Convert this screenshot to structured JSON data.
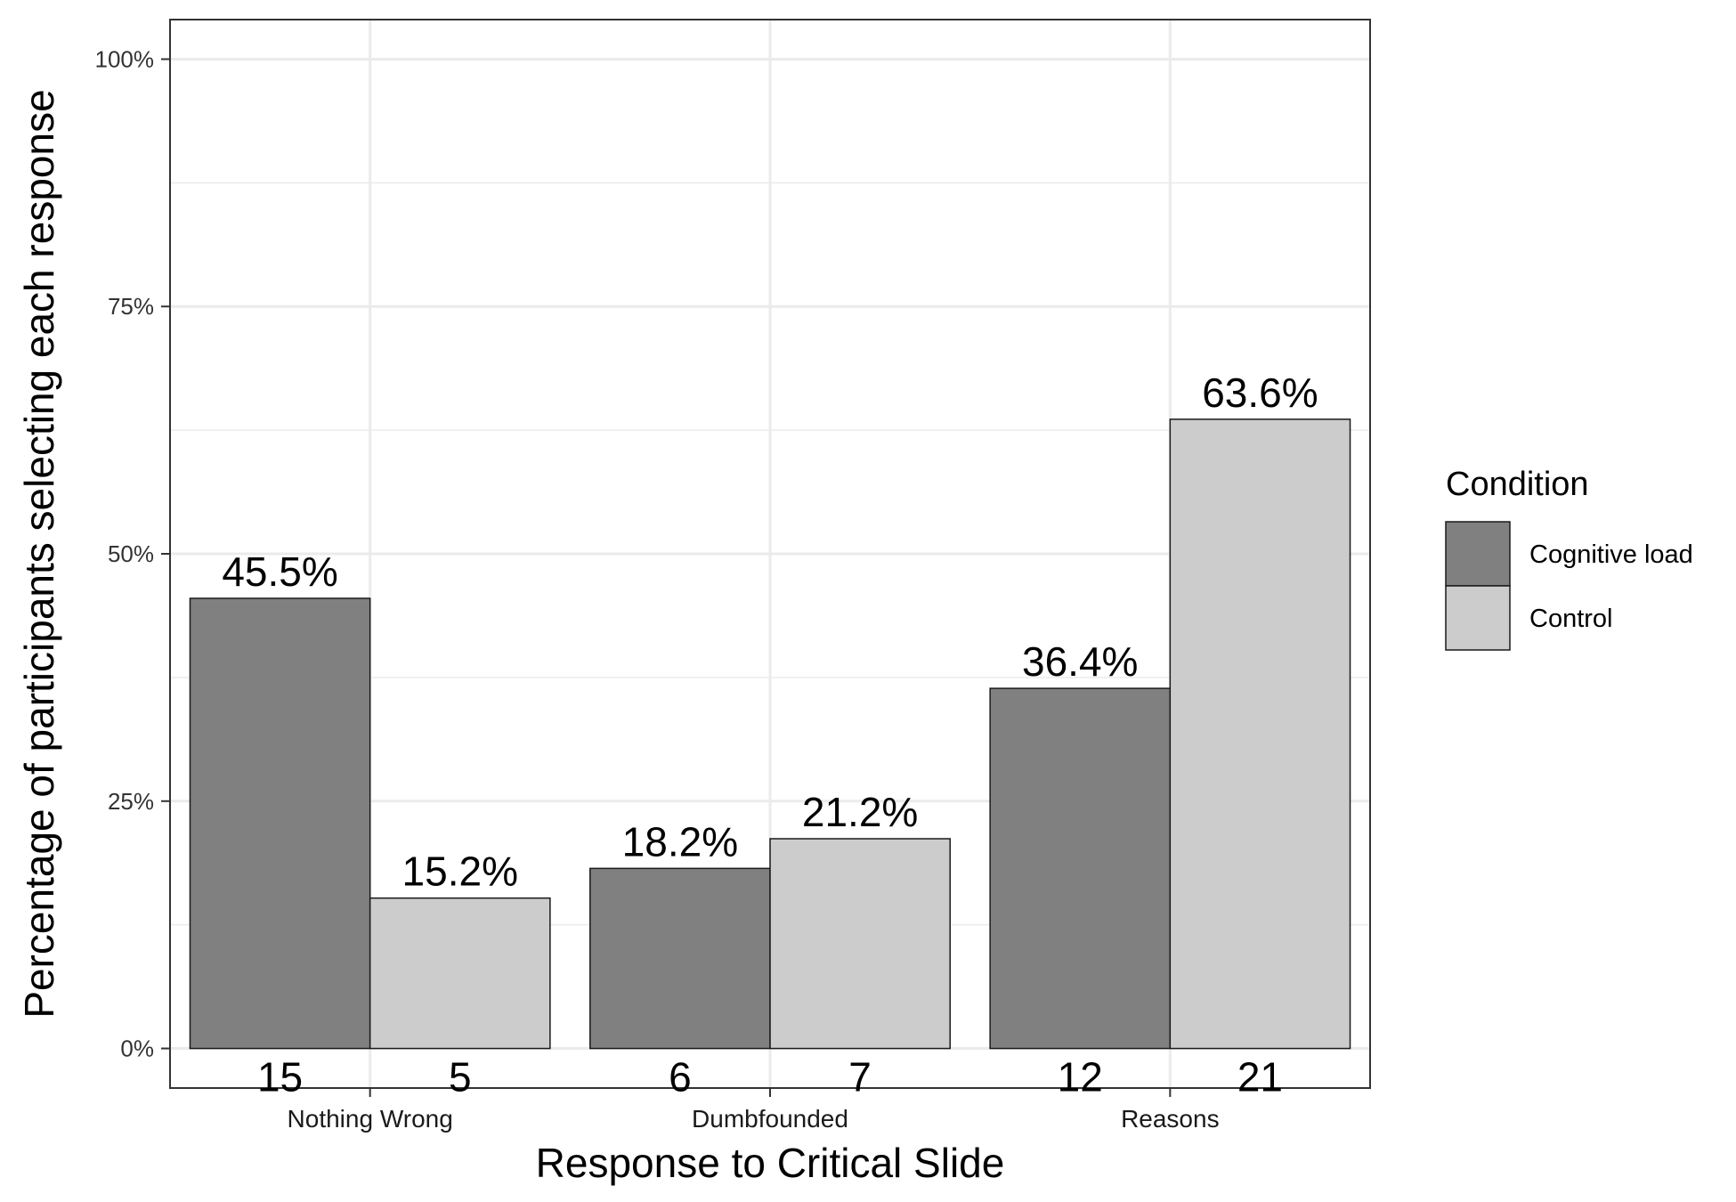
{
  "chart_data": {
    "type": "bar",
    "xlabel": "Response to Critical Slide",
    "ylabel": "Percentage of participants selecting each response",
    "categories": [
      "Nothing Wrong",
      "Dumbfounded",
      "Reasons"
    ],
    "series": [
      {
        "name": "Cognitive load",
        "color": "#808080",
        "values": [
          45.5,
          18.2,
          36.4
        ],
        "value_labels": [
          "45.5%",
          "18.2%",
          "36.4%"
        ],
        "counts": [
          "15",
          "6",
          "12"
        ]
      },
      {
        "name": "Control",
        "color": "#cccccc",
        "values": [
          15.2,
          21.2,
          63.6
        ],
        "value_labels": [
          "15.2%",
          "21.2%",
          "63.6%"
        ],
        "counts": [
          "5",
          "7",
          "21"
        ]
      }
    ],
    "ylim": [
      -4,
      104
    ],
    "yticks": [
      0,
      25,
      50,
      75,
      100
    ],
    "ytick_labels": [
      "0%",
      "25%",
      "50%",
      "75%",
      "100%"
    ],
    "grid": true,
    "legend": {
      "title": "Condition",
      "position": "right"
    }
  }
}
